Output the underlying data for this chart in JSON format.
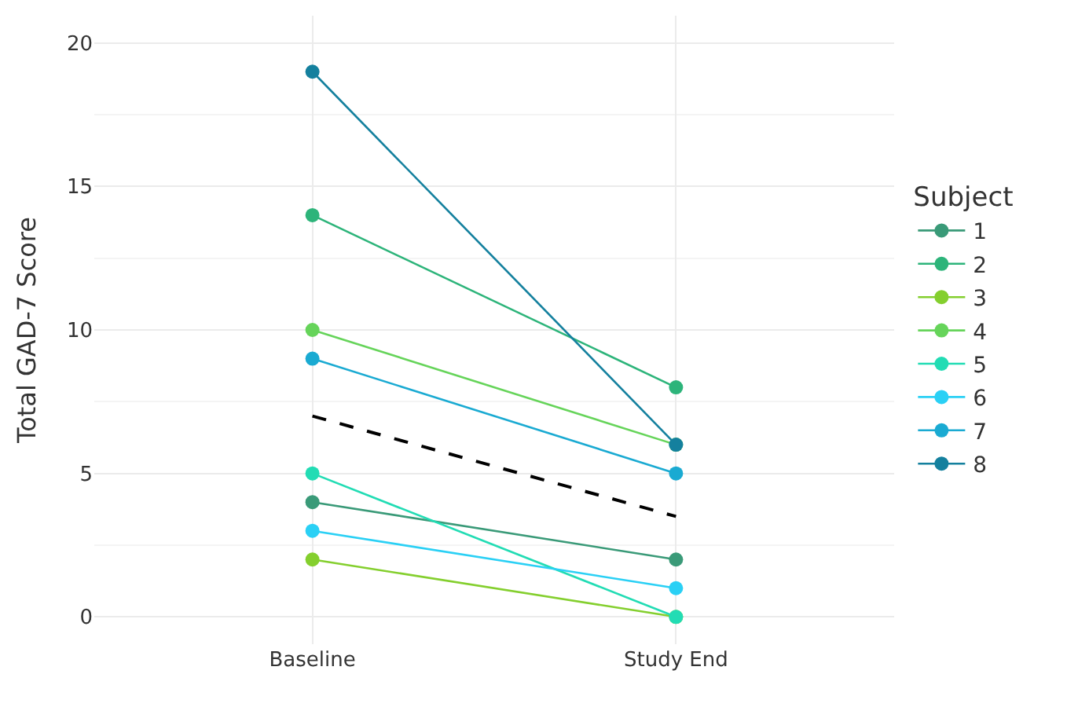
{
  "chart_data": {
    "type": "line",
    "ylabel": "Total GAD-7 Score",
    "legend_title": "Subject",
    "categories": [
      "Baseline",
      "Study End"
    ],
    "series": [
      {
        "name": "1",
        "color": "#3a9a78",
        "values": [
          4,
          2
        ]
      },
      {
        "name": "2",
        "color": "#2db47a",
        "values": [
          14,
          8
        ]
      },
      {
        "name": "3",
        "color": "#84cf2e",
        "values": [
          2,
          0
        ]
      },
      {
        "name": "4",
        "color": "#66d45a",
        "values": [
          10,
          6
        ]
      },
      {
        "name": "5",
        "color": "#22dcb4",
        "values": [
          5,
          0
        ]
      },
      {
        "name": "6",
        "color": "#2ad0f5",
        "values": [
          3,
          1
        ]
      },
      {
        "name": "7",
        "color": "#1aaad2",
        "values": [
          9,
          5
        ]
      },
      {
        "name": "8",
        "color": "#14809e",
        "values": [
          19,
          6
        ]
      },
      {
        "color": "#000000",
        "values": [
          7,
          3.5
        ],
        "marker": "none",
        "line_style": "dashed"
      }
    ],
    "ylim": [
      -0.95,
      20.95
    ],
    "yticks": [
      0,
      5,
      10,
      15,
      20
    ],
    "grid": true,
    "legend": "right",
    "marker": "circle",
    "line_style": "solid"
  }
}
